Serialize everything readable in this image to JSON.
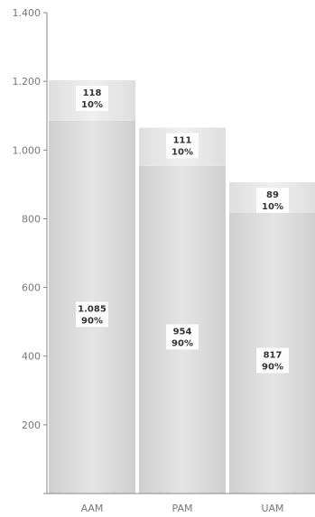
{
  "chart_data": {
    "type": "bar",
    "stacked": true,
    "categories": [
      "AAM",
      "PAM",
      "UAM"
    ],
    "series": [
      {
        "values": [
          1085,
          954,
          817
        ],
        "value_labels": [
          "1.085",
          "954",
          "817"
        ],
        "percent_labels": [
          "90%",
          "90%",
          "90%"
        ]
      },
      {
        "values": [
          118,
          111,
          89
        ],
        "value_labels": [
          "118",
          "111",
          "89"
        ],
        "percent_labels": [
          "10%",
          "10%",
          "10%"
        ]
      }
    ],
    "ylim": [
      0,
      1400
    ],
    "yticks": [
      0,
      200,
      400,
      600,
      800,
      1000,
      1200,
      1400
    ],
    "ytick_labels": [
      "",
      "200",
      "400",
      "600",
      "800",
      "1.000",
      "1.200",
      "1.400"
    ],
    "grid": false,
    "colors": {
      "bar_main": "#d9d9d9",
      "bar_top": "#e8e8e8",
      "axis": "#888888",
      "label_box": "#ffffff"
    }
  }
}
